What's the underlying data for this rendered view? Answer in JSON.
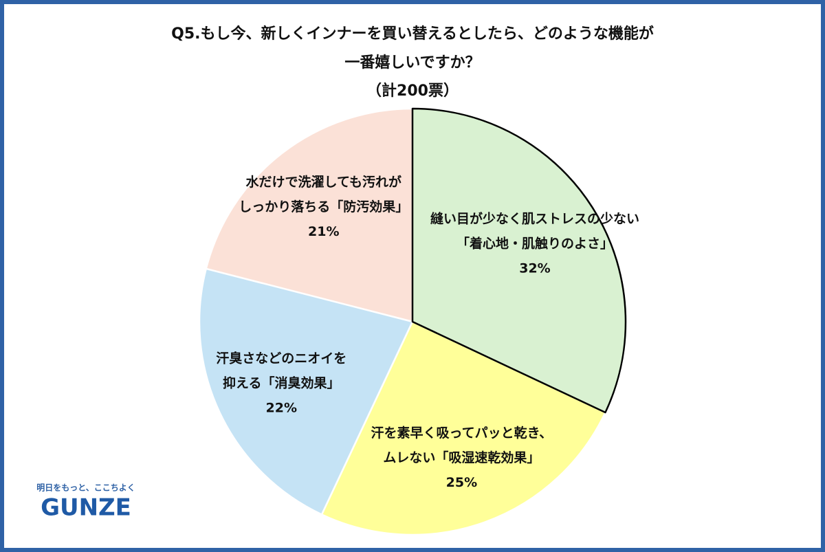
{
  "chart_data": {
    "type": "pie",
    "title": [
      "Q5.もし今、新しくインナーを買い替えるとしたら、どのような機能が",
      "一番嬉しいですか？"
    ],
    "subtitle": "（計200票）",
    "categories": [
      [
        "縫い目が少なく肌ストレスの少ない",
        "「着心地・肌触りのよさ」"
      ],
      [
        "汗を素早く吸ってパッと乾き、",
        "ムレない「吸湿速乾効果」"
      ],
      [
        "汗臭さなどのニオイを",
        "抑える「消臭効果」"
      ],
      [
        "水だけで洗濯しても汚れが",
        "しっかり落ちる「防汚効果」"
      ]
    ],
    "values": [
      32,
      25,
      22,
      21
    ],
    "value_labels": [
      "32%",
      "25%",
      "22%",
      "21%"
    ],
    "colors": [
      "#d9f1d1",
      "#ffff99",
      "#c5e3f5",
      "#fbe1d7"
    ],
    "edge_colors": [
      "#000000",
      "#ffffff",
      "#ffffff",
      "#ffffff"
    ]
  },
  "logo": {
    "tagline": "明日をもっと、ここちよく",
    "name": "GUNZE"
  }
}
